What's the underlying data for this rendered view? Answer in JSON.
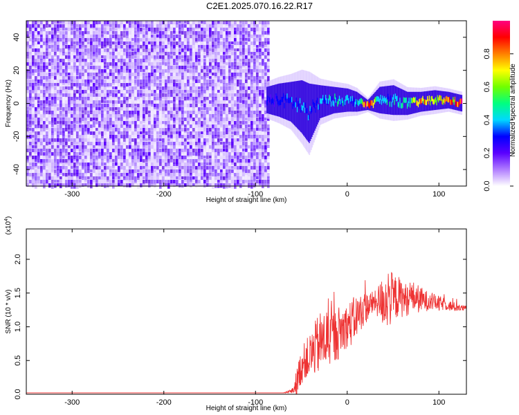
{
  "title": "C2E1.2025.070.16.22.R17",
  "chart_data": [
    {
      "type": "heatmap",
      "title": "C2E1.2025.070.16.22.R17",
      "xlabel": "Height of straight line (km)",
      "ylabel": "Frequency (Hz)",
      "xlim": [
        -350,
        130
      ],
      "ylim": [
        -50,
        50
      ],
      "x_ticks": [
        -300,
        -200,
        -100,
        0,
        100
      ],
      "y_ticks": [
        -40,
        -20,
        0,
        20,
        40
      ],
      "colorbar": {
        "label": "Normalized spectral amplitude",
        "range": [
          0,
          1
        ],
        "ticks": [
          "0.0",
          "0.2",
          "0.4",
          "0.6",
          "0.8"
        ],
        "colors": [
          "#ffffff",
          "#b07cff",
          "#5a00ff",
          "#0000ff",
          "#00d8ff",
          "#00ff80",
          "#70ff00",
          "#ffff00",
          "#ff8000",
          "#ff0000",
          "#ff0080"
        ]
      },
      "noise_region": {
        "x_range": [
          -350,
          -87
        ],
        "amplitude_range": [
          0.0,
          0.1
        ]
      },
      "signal_trace": [
        {
          "x": -88,
          "freq": 2,
          "width": 8,
          "amp": 0.25
        },
        {
          "x": -75,
          "freq": 2,
          "width": 10,
          "amp": 0.3
        },
        {
          "x": -62,
          "freq": 1,
          "width": 12,
          "amp": 0.32
        },
        {
          "x": -50,
          "freq": -2,
          "width": 16,
          "amp": 0.34
        },
        {
          "x": -42,
          "freq": -6,
          "width": 18,
          "amp": 0.3
        },
        {
          "x": -30,
          "freq": 1,
          "width": 10,
          "amp": 0.38
        },
        {
          "x": -15,
          "freq": 2,
          "width": 8,
          "amp": 0.4
        },
        {
          "x": 0,
          "freq": 2,
          "width": 7,
          "amp": 0.4
        },
        {
          "x": 10,
          "freq": 1,
          "width": 6,
          "amp": 0.35
        },
        {
          "x": 22,
          "freq": -1,
          "width": 3,
          "amp": 0.9
        },
        {
          "x": 35,
          "freq": 2,
          "width": 8,
          "amp": 0.4
        },
        {
          "x": 50,
          "freq": 2,
          "width": 9,
          "amp": 0.42
        },
        {
          "x": 65,
          "freq": 0,
          "width": 7,
          "amp": 0.45
        },
        {
          "x": 80,
          "freq": 1,
          "width": 6,
          "amp": 0.75
        },
        {
          "x": 95,
          "freq": 2,
          "width": 6,
          "amp": 0.7
        },
        {
          "x": 110,
          "freq": 2,
          "width": 5,
          "amp": 0.75
        },
        {
          "x": 125,
          "freq": 0,
          "width": 5,
          "amp": 0.85
        }
      ]
    },
    {
      "type": "line",
      "xlabel": "Height of straight line (km)",
      "ylabel": "SNR (10 * v/v)",
      "y_multiplier": "(x10",
      "y_multiplier_exp": "4",
      "xlim": [
        -350,
        130
      ],
      "ylim": [
        0,
        2.45
      ],
      "x_ticks": [
        -300,
        -200,
        -100,
        0,
        100
      ],
      "y_ticks": [
        "0.0",
        "0.5",
        "1.0",
        "1.5",
        "2.0"
      ],
      "line_color": "#ee3333",
      "series": [
        {
          "x": [
            -350,
            -300,
            -200,
            -100,
            -70,
            -60,
            -55,
            -50,
            -45,
            -40,
            -35,
            -30,
            -25,
            -20,
            -15,
            -10,
            -5,
            0,
            5,
            10,
            15,
            20,
            25,
            30,
            35,
            40,
            45,
            50,
            55,
            60,
            65,
            70,
            75,
            80,
            85,
            90,
            95,
            100,
            105,
            110,
            115,
            120,
            125,
            130
          ],
          "y": [
            0.02,
            0.02,
            0.02,
            0.02,
            0.02,
            0.05,
            0.2,
            0.45,
            0.55,
            0.6,
            0.72,
            0.8,
            0.85,
            0.9,
            0.88,
            0.95,
            1.0,
            1.05,
            1.1,
            1.18,
            1.25,
            1.3,
            1.35,
            1.38,
            1.4,
            1.42,
            1.5,
            1.45,
            1.48,
            1.45,
            1.42,
            1.48,
            1.45,
            1.42,
            1.4,
            1.4,
            1.38,
            1.35,
            1.35,
            1.33,
            1.3,
            1.3,
            1.28,
            1.28
          ],
          "noise": [
            0,
            0,
            0,
            0,
            0,
            0.05,
            0.25,
            0.35,
            0.35,
            0.45,
            0.5,
            0.6,
            0.55,
            0.6,
            0.5,
            0.5,
            0.45,
            0.4,
            0.45,
            0.4,
            0.35,
            0.3,
            0.25,
            0.2,
            0.35,
            0.5,
            0.6,
            0.45,
            0.4,
            0.35,
            0.3,
            0.3,
            0.28,
            0.25,
            0.2,
            0.18,
            0.15,
            0.15,
            0.12,
            0.1,
            0.1,
            0.08,
            0.06,
            0.05
          ]
        }
      ]
    }
  ]
}
